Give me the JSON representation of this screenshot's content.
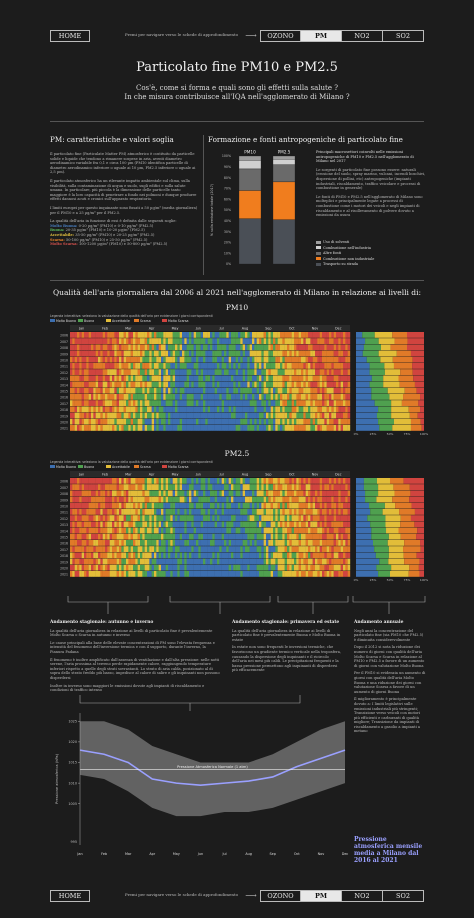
{
  "nav_top": {
    "home": "HOME",
    "hint": "Premi per navigare verso le schede di approfondimento",
    "tabs": [
      {
        "label": "OZONO",
        "active": false
      },
      {
        "label": "PM",
        "active": true
      },
      {
        "label": "NO2",
        "active": false
      },
      {
        "label": "SO2",
        "active": false
      }
    ]
  },
  "header": {
    "title": "Particolato fine PM10 e PM2.5",
    "q1": "Cos'è, come si forma e quali sono gli effetti sulla salute ?",
    "q2": "In che misura contribuisce all'IQA nell'agglomerato di Milano ?"
  },
  "left_col": {
    "heading": "PM: caratteristiche e valori soglia",
    "p1": "Il particolato fine (Particulate Matter PM) atmosferico è costituito da particelle solide e liquide che tendono a rimanere sospese in aria, aventi diametro aerodinamico variabile fra 0,1 e circa 100 µm (PM10 identifica particelle di diametro aerodinamico inferiore o uguale ai 10 µm, PM2.5 inferiore o uguale ai 2,5 µm).",
    "p2": "Il particolato atmosferico ha un rilevante impatto ambientale sul clima, sulla visibilità, sulla contaminazione di acqua e suolo, sugli edifici e sulla salute umana. In particolare, più piccola è la dimensione delle particelle tanto maggiore è la loro capacità di penetrare a fondo nei polmoni e dunque produrre effetti dannosi acuti e cronici sull'apparato respiratorio.",
    "p3": "I limiti europei per questo inquinante sono fissati a 50 µg/m³ (media giornaliera) per il PM10 e a 25 µg/m³ per il PM2.5.",
    "p4": "La qualità dell'aria in funzione di essi è definita dalle seguenti soglie:",
    "thresholds": [
      {
        "label": "Molto Buona:",
        "text": "0-20 µg/m³ (PM10) e 0-10 µg/m³ (PM2.5)",
        "color": "#4a7fc1"
      },
      {
        "label": "Buona:",
        "text": "20-35 µg/m³ (PM10) e 10-20 µg/m³ (PM2.5)",
        "color": "#5cb85c"
      },
      {
        "label": "Accettabile:",
        "text": "35-50 µg/m³ (PM10) e 20-25 µg/m³ (PM2.5)",
        "color": "#e8c440"
      },
      {
        "label": "Scarsa:",
        "text": "50-100 µg/m³ (PM10) e 25-50 µg/m³ (PM2.5)",
        "color": "#e8832a"
      },
      {
        "label": "Molto Scarsa:",
        "text": "100-1200 µg/m³ (PM10) e 50-800 µg/m³ (PM2.5)",
        "color": "#d9534f"
      }
    ]
  },
  "right_col": {
    "heading": "Formazione e fonti antropogeniche di particolato fine",
    "bar_labels": [
      "PM10",
      "PM2.5"
    ],
    "ylabel": "% sulla emissione totale (2017)",
    "yticks": [
      "100%",
      "90%",
      "80%",
      "70%",
      "60%",
      "50%",
      "40%",
      "30%",
      "20%",
      "10%",
      "0%"
    ],
    "note1": "Principali macrosettori coinvolti nelle emissioni antropogeniche di PM10 e PM2.5 nell'agglomerato di Milano nel 2017",
    "p1": "Le sorgenti di particolato fine possono essere: naturali (erosione del suolo, spray marino, vulcani, incendi boschivi, dispersione di pollini, etc) antropogeniche (impianti industriali, riscaldamento, traffico veicolare e processi di combustione in generale)",
    "p2": "Le fonti di PM10 e PM2.5 nell'agglomerato di Milano sono molteplici e principalmente legate a processi di combustione come i motori dei veicoli e negli impianti di riscaldamento e al risollevamento di polvere dovuto a emissioni da usura",
    "legend": [
      {
        "label": "Uso di solventi",
        "color": "#9e9e9e"
      },
      {
        "label": "Combustione nell'industria",
        "color": "#d0d0d0"
      },
      {
        "label": "Altre fonti",
        "color": "#6a6a6a"
      },
      {
        "label": "Combustione non industriale",
        "color": "#f07d1e"
      },
      {
        "label": "Trasporto su strada",
        "color": "#4a4f56"
      }
    ]
  },
  "iqa": {
    "title": "Qualità dell'aria giornaliera dal 2006 al 2021 nell'agglomerato di Milano in relazione ai livelli di:",
    "pm10_label": "PM10",
    "pm25_label": "PM2.5",
    "legend_hint": "Legenda interattiva: seleziona la valutazione della qualità dell'aria per evidenziare i giorni corrispondenti",
    "legend_items": [
      "Molto Buona",
      "Buona",
      "Accettabile",
      "Scarsa",
      "Molto Scarsa"
    ],
    "months": [
      "Jan",
      "Feb",
      "Mar",
      "Apr",
      "May",
      "Jun",
      "Jul",
      "Aug",
      "Sep",
      "Oct",
      "Nov",
      "Dec"
    ],
    "years": [
      "2006",
      "2007",
      "2008",
      "2009",
      "2010",
      "2011",
      "2012",
      "2013",
      "2014",
      "2015",
      "2016",
      "2017",
      "2018",
      "2019",
      "2020",
      "2021"
    ],
    "pct_ticks": [
      "0%",
      "25%",
      "50%",
      "75%",
      "100%"
    ]
  },
  "bottom": {
    "col1_title": "Andamento stagionale: autunno e inverno",
    "col1_p1": "La qualità dell'aria giornaliera in relazione ai livelli di particolato fine è prevalentemente Molto Scarsa o Scarsa in autunno e inverno",
    "col1_p2": "Le cause principali alla base delle elevate concentrazioni di PM sono l'elevata frequenza e intensità del fenomeno dell'inversione termica e con il supporto, durante l'inverno, la Pianura Padana",
    "col1_p3": "Il fenomeno è inoltre amplificato dall'assenza di ventilazione e dall'alta pressione: nelle notti serene, l'aria prossima al terreno perde rapidamente calore, raggiungendo temperature inferiori rispetto a quelle degli strati sovrastanti. Lo strato di aria calda, posizionato al di sopra dello strato freddo più basso, impedisce al calore di salire e gli inquinanti non possono disperdersi",
    "col1_p4": "Inoltre in inverno sono maggiori le emissioni dovute agli impianti di riscaldamento e condizioni di traffico intenso",
    "col2_title": "Andamento stagionale: primavera ed estate",
    "col2_p1": "La qualità dell'aria giornaliera in relazione ai livelli di particolato fine è prevalentemente Buona e Molto Buona in estate",
    "col2_p2": "In estate non sono frequenti le inversioni termiche, che favoriscono un gradiente termico verticale nella troposfera, causando la dispersione degli inquinanti e il ricircolo dell'aria nei mesi più caldi. Le precipitazioni frequenti e la bassa pressione permettono agli inquinanti di disperdersi più efficacemente",
    "col3_title": "Andamento annuale",
    "col3_p1": "Negli anni la concentrazione del particolato fine (sia PM10 che PM2.5) è diminuita considerevolmente",
    "col3_p2": "Dopo il 2012 si nota la riduzione dei numero di giorni con qualità dell'aria Molto Scarsa e Scarsa in relazione al PM10 e PM2.5 a favore di un aumento di giorni con valutazione Molto Buona",
    "col3_p3": "Per il PM10 si evidenzia un aumento di giorni con qualità dell'aria Molto Buona e una riduzione dei giorni con valutazione Scarsa a favore di un aumento di giorni Buona",
    "col3_p4": "Il miglioramento è principalmente dovuto a: I limiti legislativi sulle emissioni industriali più stringenti; Transizione verso veicoli con motori più efficienti e carburanti di qualità migliore; Transizione da impianti di riscaldamento a gasolio a impianti a metano",
    "chart_caption": "Pressione atmosferica mensile media a Milano dal 2016 al 2021"
  },
  "pressure_chart": {
    "ylabel": "Pressione atmosferica (hPa)",
    "ref_label": "Pressione Atmosferica Normale (1 atm)",
    "yticks": [
      "1025",
      "1020",
      "1015",
      "1010",
      "1005"
    ],
    "y_low_tick": "995",
    "months": [
      "Jan",
      "Feb",
      "Mar",
      "Apr",
      "May",
      "Jun",
      "Jul",
      "Aug",
      "Sep",
      "Oct",
      "Nov",
      "Dec"
    ]
  },
  "chart_data": {
    "type": "area",
    "title": "",
    "xlabel": "",
    "ylabel": "Pressione atmosferica (hPa)",
    "x": [
      "Jan",
      "Feb",
      "Mar",
      "Apr",
      "May",
      "Jun",
      "Jul",
      "Aug",
      "Sep",
      "Oct",
      "Nov",
      "Dec"
    ],
    "ylim": [
      995,
      1027
    ],
    "reference_line": 1013.25,
    "series": [
      {
        "name": "",
        "values": [
          1018,
          1017,
          1015,
          1011,
          1010,
          1009.5,
          1010,
          1010.5,
          1011.5,
          1014,
          1016,
          1018
        ]
      },
      {
        "name": "",
        "values": [
          1025,
          1025,
          1023,
          1019,
          1017,
          1015,
          1015,
          1015,
          1017,
          1020,
          1023,
          1025
        ]
      },
      {
        "name": "",
        "values": [
          1012,
          1011,
          1008,
          1004,
          1002,
          1002,
          1003,
          1003,
          1004,
          1006,
          1008,
          1010
        ]
      }
    ]
  },
  "nav_bottom": {
    "home": "HOME",
    "hint": "Premi per navigare verso le schede di approfondimento",
    "tabs": [
      {
        "label": "OZONO",
        "active": false
      },
      {
        "label": "PM",
        "active": true
      },
      {
        "label": "NO2",
        "active": false
      },
      {
        "label": "SO2",
        "active": false
      }
    ]
  },
  "colors": {
    "molto_buona": "#3d6fb0",
    "buona": "#4fa04f",
    "accettabile": "#e2bd39",
    "scarsa": "#e07a28",
    "molto_scarsa": "#d0443f"
  }
}
